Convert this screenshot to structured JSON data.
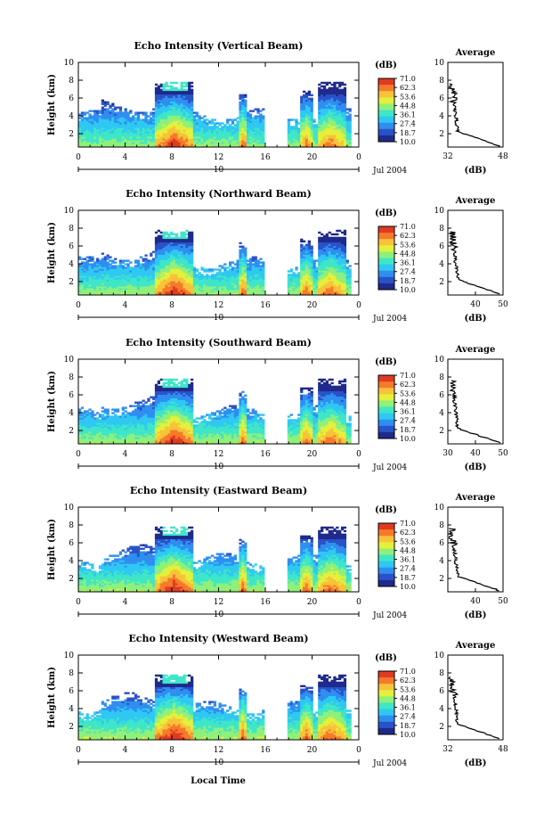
{
  "figure": {
    "xlabel_bottom": "Local Time",
    "date_label": "Jul 2004",
    "date_tick": "10",
    "colorbar_unit": "(dB)",
    "colorbar_ticks": [
      "71.0",
      "62.3",
      "53.6",
      "44.8",
      "36.1",
      "27.4",
      "18.7",
      "10.0"
    ],
    "colorscale": [
      "#1e2a8c",
      "#2a52c8",
      "#2f8ef0",
      "#2fc8f2",
      "#3fe6c8",
      "#8ff07a",
      "#e4f03a",
      "#f8c23a",
      "#f57a2a",
      "#e03a22"
    ]
  },
  "chart_data": [
    {
      "type": "heatmap",
      "title": "Echo Intensity (Vertical Beam)",
      "xlabel": "Local Time",
      "ylabel": "Height (km)",
      "xlim": [
        0,
        24
      ],
      "ylim": [
        0.5,
        10
      ],
      "xticks": [
        "0",
        "4",
        "8",
        "12",
        "16",
        "20",
        "0"
      ],
      "yticks": [
        "2",
        "4",
        "6",
        "8",
        "10"
      ],
      "colorbar": {
        "label": "(dB)",
        "range": [
          10.0,
          71.0
        ]
      },
      "profile": {
        "title": "Average",
        "xlabel": "(dB)",
        "xlim": [
          32,
          48
        ],
        "xticks": [
          "32",
          "48"
        ],
        "yticks": [
          "2",
          "4",
          "6",
          "8",
          "10"
        ]
      }
    },
    {
      "type": "heatmap",
      "title": "Echo Intensity (Northward Beam)",
      "xlabel": "Local Time",
      "ylabel": "Height (km)",
      "xlim": [
        0,
        24
      ],
      "ylim": [
        0.5,
        10
      ],
      "xticks": [
        "0",
        "4",
        "8",
        "12",
        "16",
        "20",
        "0"
      ],
      "yticks": [
        "2",
        "4",
        "6",
        "8",
        "10"
      ],
      "colorbar": {
        "label": "(dB)",
        "range": [
          10.0,
          71.0
        ]
      },
      "profile": {
        "title": "Average",
        "xlabel": "(dB)",
        "xlim": [
          30,
          50
        ],
        "xticks": [
          "40",
          "50"
        ],
        "yticks": [
          "2",
          "4",
          "6",
          "8",
          "10"
        ]
      }
    },
    {
      "type": "heatmap",
      "title": "Echo Intensity (Southward Beam)",
      "xlabel": "Local Time",
      "ylabel": "Height (km)",
      "xlim": [
        0,
        24
      ],
      "ylim": [
        0.5,
        10
      ],
      "xticks": [
        "0",
        "4",
        "8",
        "12",
        "16",
        "20",
        "0"
      ],
      "yticks": [
        "2",
        "4",
        "6",
        "8",
        "10"
      ],
      "colorbar": {
        "label": "(dB)",
        "range": [
          10.0,
          71.0
        ]
      },
      "profile": {
        "title": "Average",
        "xlabel": "(dB)",
        "xlim": [
          30,
          50
        ],
        "xticks": [
          "30",
          "40",
          "50"
        ],
        "yticks": [
          "2",
          "4",
          "6",
          "8",
          "10"
        ]
      }
    },
    {
      "type": "heatmap",
      "title": "Echo Intensity (Eastward Beam)",
      "xlabel": "Local Time",
      "ylabel": "Height (km)",
      "xlim": [
        0,
        24
      ],
      "ylim": [
        0.5,
        10
      ],
      "xticks": [
        "0",
        "4",
        "8",
        "12",
        "16",
        "20",
        "0"
      ],
      "yticks": [
        "2",
        "4",
        "6",
        "8",
        "10"
      ],
      "colorbar": {
        "label": "(dB)",
        "range": [
          10.0,
          71.0
        ]
      },
      "profile": {
        "title": "Average",
        "xlabel": "(dB)",
        "xlim": [
          30,
          50
        ],
        "xticks": [
          "40",
          "50"
        ],
        "yticks": [
          "2",
          "4",
          "6",
          "8",
          "10"
        ]
      }
    },
    {
      "type": "heatmap",
      "title": "Echo Intensity (Westward Beam)",
      "xlabel": "Local Time",
      "ylabel": "Height (km)",
      "xlim": [
        0,
        24
      ],
      "ylim": [
        0.5,
        10
      ],
      "xticks": [
        "0",
        "4",
        "8",
        "12",
        "16",
        "20",
        "0"
      ],
      "yticks": [
        "2",
        "4",
        "6",
        "8",
        "10"
      ],
      "colorbar": {
        "label": "(dB)",
        "range": [
          10.0,
          71.0
        ]
      },
      "profile": {
        "title": "Average",
        "xlabel": "(dB)",
        "xlim": [
          32,
          48
        ],
        "xticks": [
          "32",
          "48"
        ],
        "yticks": [
          "2",
          "4",
          "6",
          "8",
          "10"
        ]
      }
    }
  ]
}
